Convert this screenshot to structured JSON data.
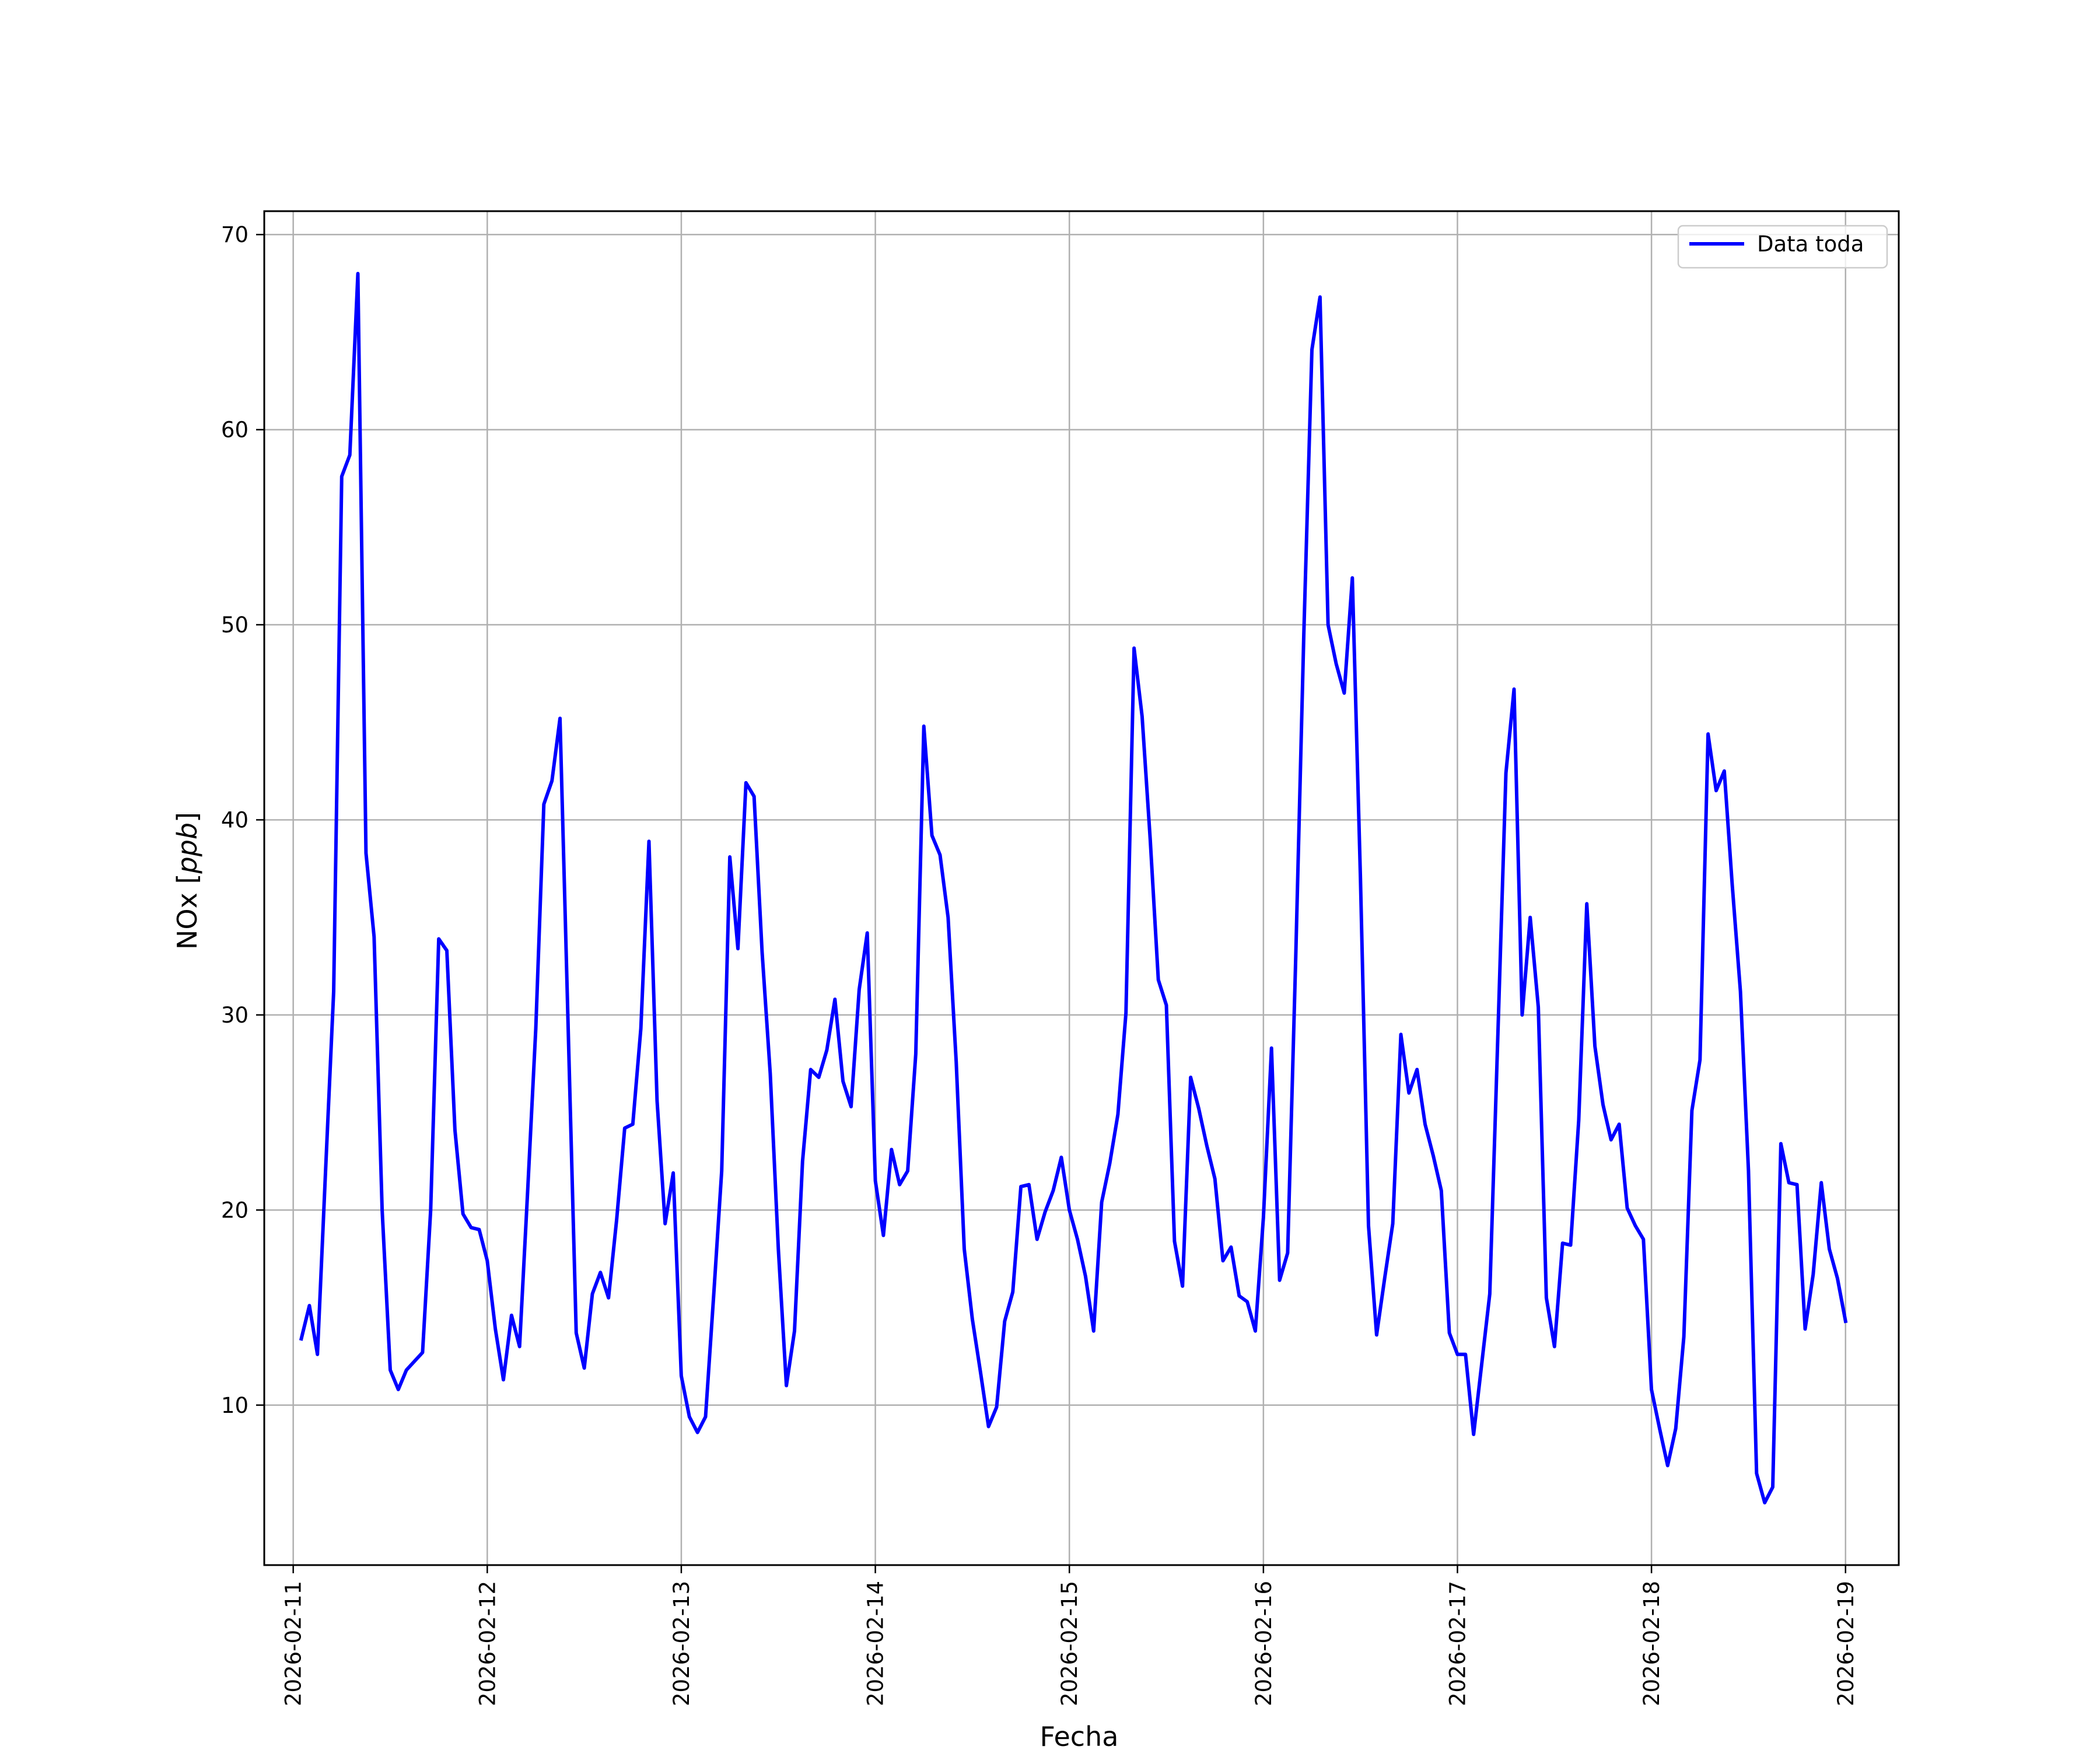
{
  "chart_data": {
    "type": "line",
    "title": "",
    "xlabel": "Fecha",
    "ylabel": "NOx [ppb]",
    "ylabel_parts": {
      "prefix": "NOx [",
      "unit": "ppb",
      "suffix": "]"
    },
    "xlim": [
      "2026-02-10T20:25",
      "2026-02-19T06:35"
    ],
    "ylim": [
      1.8,
      71.2
    ],
    "x_ticks": [
      "2026-02-11",
      "2026-02-12",
      "2026-02-13",
      "2026-02-14",
      "2026-02-15",
      "2026-02-16",
      "2026-02-17",
      "2026-02-18",
      "2026-02-19"
    ],
    "y_ticks": [
      10,
      20,
      30,
      40,
      50,
      60,
      70
    ],
    "grid": true,
    "legend_position": "upper-right",
    "series_color": "#0000ff",
    "series": [
      {
        "name": "Data toda",
        "color": "#0000ff",
        "x": [
          "2026-02-11T01:00",
          "2026-02-11T02:00",
          "2026-02-11T03:00",
          "2026-02-11T04:00",
          "2026-02-11T05:00",
          "2026-02-11T06:00",
          "2026-02-11T07:00",
          "2026-02-11T08:00",
          "2026-02-11T09:00",
          "2026-02-11T10:00",
          "2026-02-11T11:00",
          "2026-02-11T12:00",
          "2026-02-11T13:00",
          "2026-02-11T14:00",
          "2026-02-11T16:00",
          "2026-02-11T17:00",
          "2026-02-11T18:00",
          "2026-02-11T19:00",
          "2026-02-11T20:00",
          "2026-02-11T21:00",
          "2026-02-11T22:00",
          "2026-02-11T23:00",
          "2026-02-12T00:00",
          "2026-02-12T01:00",
          "2026-02-12T02:00",
          "2026-02-12T03:00",
          "2026-02-12T04:00",
          "2026-02-12T05:00",
          "2026-02-12T06:00",
          "2026-02-12T07:00",
          "2026-02-12T08:00",
          "2026-02-12T09:00",
          "2026-02-12T11:00",
          "2026-02-12T12:00",
          "2026-02-12T13:00",
          "2026-02-12T14:00",
          "2026-02-12T15:00",
          "2026-02-12T16:00",
          "2026-02-12T17:00",
          "2026-02-12T18:00",
          "2026-02-12T19:00",
          "2026-02-12T20:00",
          "2026-02-12T21:00",
          "2026-02-12T22:00",
          "2026-02-12T23:00",
          "2026-02-13T00:00",
          "2026-02-13T01:00",
          "2026-02-13T02:00",
          "2026-02-13T03:00",
          "2026-02-13T04:00",
          "2026-02-13T05:00",
          "2026-02-13T06:00",
          "2026-02-13T07:00",
          "2026-02-13T08:00",
          "2026-02-13T09:00",
          "2026-02-13T10:00",
          "2026-02-13T11:00",
          "2026-02-13T12:00",
          "2026-02-13T13:00",
          "2026-02-13T14:00",
          "2026-02-13T15:00",
          "2026-02-13T16:00",
          "2026-02-13T17:00",
          "2026-02-13T18:00",
          "2026-02-13T19:00",
          "2026-02-13T20:00",
          "2026-02-13T21:00",
          "2026-02-13T22:00",
          "2026-02-13T23:00",
          "2026-02-14T00:00",
          "2026-02-14T01:00",
          "2026-02-14T02:00",
          "2026-02-14T03:00",
          "2026-02-14T04:00",
          "2026-02-14T05:00",
          "2026-02-14T06:00",
          "2026-02-14T07:00",
          "2026-02-14T08:00",
          "2026-02-14T09:00",
          "2026-02-14T10:00",
          "2026-02-14T11:00",
          "2026-02-14T12:00",
          "2026-02-14T13:00",
          "2026-02-14T14:00",
          "2026-02-14T15:00",
          "2026-02-14T16:00",
          "2026-02-14T17:00",
          "2026-02-14T18:00",
          "2026-02-14T19:00",
          "2026-02-14T20:00",
          "2026-02-14T21:00",
          "2026-02-14T22:00",
          "2026-02-14T23:00",
          "2026-02-15T00:00",
          "2026-02-15T01:00",
          "2026-02-15T02:00",
          "2026-02-15T03:00",
          "2026-02-15T04:00",
          "2026-02-15T05:00",
          "2026-02-15T06:00",
          "2026-02-15T07:00",
          "2026-02-15T08:00",
          "2026-02-15T09:00",
          "2026-02-15T10:00",
          "2026-02-15T11:00",
          "2026-02-15T12:00",
          "2026-02-15T13:00",
          "2026-02-15T14:00",
          "2026-02-15T15:00",
          "2026-02-15T16:00",
          "2026-02-15T17:00",
          "2026-02-15T18:00",
          "2026-02-15T19:00",
          "2026-02-15T20:00",
          "2026-02-15T21:00",
          "2026-02-15T22:00",
          "2026-02-15T23:00",
          "2026-02-16T00:00",
          "2026-02-16T01:00",
          "2026-02-16T02:00",
          "2026-02-16T03:00",
          "2026-02-16T04:00",
          "2026-02-16T05:00",
          "2026-02-16T06:00",
          "2026-02-16T07:00",
          "2026-02-16T08:00",
          "2026-02-16T09:00",
          "2026-02-16T10:00",
          "2026-02-16T11:00",
          "2026-02-16T12:00",
          "2026-02-16T13:00",
          "2026-02-16T14:00",
          "2026-02-16T15:00",
          "2026-02-16T16:00",
          "2026-02-16T17:00",
          "2026-02-16T18:00",
          "2026-02-16T19:00",
          "2026-02-16T20:00",
          "2026-02-16T21:00",
          "2026-02-16T22:00",
          "2026-02-16T23:00",
          "2026-02-17T00:00",
          "2026-02-17T01:00",
          "2026-02-17T02:00",
          "2026-02-17T04:00",
          "2026-02-17T05:00",
          "2026-02-17T06:00",
          "2026-02-17T07:00",
          "2026-02-17T08:00",
          "2026-02-17T09:00",
          "2026-02-17T10:00",
          "2026-02-17T11:00",
          "2026-02-17T12:00",
          "2026-02-17T13:00",
          "2026-02-17T14:00",
          "2026-02-17T15:00",
          "2026-02-17T16:00",
          "2026-02-17T17:00",
          "2026-02-17T18:00",
          "2026-02-17T19:00",
          "2026-02-17T20:00",
          "2026-02-17T21:00",
          "2026-02-17T22:00",
          "2026-02-17T23:00",
          "2026-02-18T00:00",
          "2026-02-18T01:00",
          "2026-02-18T02:00",
          "2026-02-18T03:00",
          "2026-02-18T04:00",
          "2026-02-18T05:00",
          "2026-02-18T06:00",
          "2026-02-18T07:00",
          "2026-02-18T08:00",
          "2026-02-18T09:00",
          "2026-02-18T10:00",
          "2026-02-18T11:00",
          "2026-02-18T12:00",
          "2026-02-18T13:00",
          "2026-02-18T14:00",
          "2026-02-18T15:00",
          "2026-02-18T16:00",
          "2026-02-18T17:00",
          "2026-02-18T18:00",
          "2026-02-18T19:00",
          "2026-02-18T20:00",
          "2026-02-18T21:00",
          "2026-02-18T22:00",
          "2026-02-18T23:00",
          "2026-02-19T00:00"
        ],
        "y": [
          13.4,
          15.1,
          12.6,
          22.0,
          31.2,
          57.6,
          58.7,
          68.0,
          38.3,
          34.0,
          20.0,
          11.8,
          10.8,
          11.8,
          12.7,
          20.0,
          33.9,
          33.3,
          24.1,
          19.8,
          19.1,
          19.0,
          17.4,
          13.9,
          11.3,
          14.6,
          13.0,
          21.0,
          29.3,
          40.8,
          42.0,
          45.2,
          13.7,
          11.9,
          15.7,
          16.8,
          15.5,
          19.5,
          24.2,
          24.4,
          29.3,
          38.9,
          25.6,
          19.3,
          21.9,
          11.5,
          9.4,
          8.6,
          9.4,
          15.6,
          22.0,
          38.1,
          33.4,
          41.9,
          41.2,
          33.2,
          27.0,
          18.0,
          11.0,
          13.8,
          22.5,
          27.2,
          26.8,
          28.2,
          30.8,
          26.6,
          25.3,
          31.3,
          34.2,
          21.5,
          18.7,
          23.1,
          21.3,
          22.0,
          28.0,
          44.8,
          39.2,
          38.2,
          35.0,
          27.6,
          18.0,
          14.4,
          11.7,
          8.9,
          9.9,
          14.3,
          15.8,
          21.2,
          21.3,
          18.5,
          19.9,
          21.0,
          22.7,
          20.0,
          18.5,
          16.6,
          13.8,
          20.4,
          22.4,
          24.9,
          30.1,
          48.8,
          45.3,
          39.0,
          31.8,
          30.5,
          18.4,
          16.1,
          26.8,
          25.2,
          23.3,
          21.6,
          17.4,
          18.1,
          15.6,
          15.3,
          13.8,
          19.6,
          28.3,
          16.4,
          17.8,
          33.0,
          49.5,
          64.1,
          66.8,
          50.0,
          48.0,
          46.5,
          52.4,
          37.0,
          19.2,
          13.6,
          16.5,
          19.3,
          29.0,
          26.0,
          27.2,
          24.4,
          22.8,
          21.0,
          13.7,
          12.6,
          12.6,
          8.5,
          15.7,
          29.0,
          42.4,
          46.7,
          30.0,
          35.0,
          30.4,
          15.5,
          13.0,
          18.3,
          18.2,
          24.6,
          35.7,
          28.4,
          25.4,
          23.6,
          24.4,
          20.1,
          19.2,
          18.5,
          10.8,
          8.8,
          6.9,
          8.8,
          13.5,
          25.1,
          27.7,
          44.4,
          41.5,
          42.5,
          36.6,
          31.2,
          22.0,
          6.5,
          5.0,
          5.8,
          23.4,
          21.4,
          21.3,
          13.9,
          16.7,
          21.4,
          18.0,
          16.5,
          14.3
        ]
      }
    ]
  }
}
